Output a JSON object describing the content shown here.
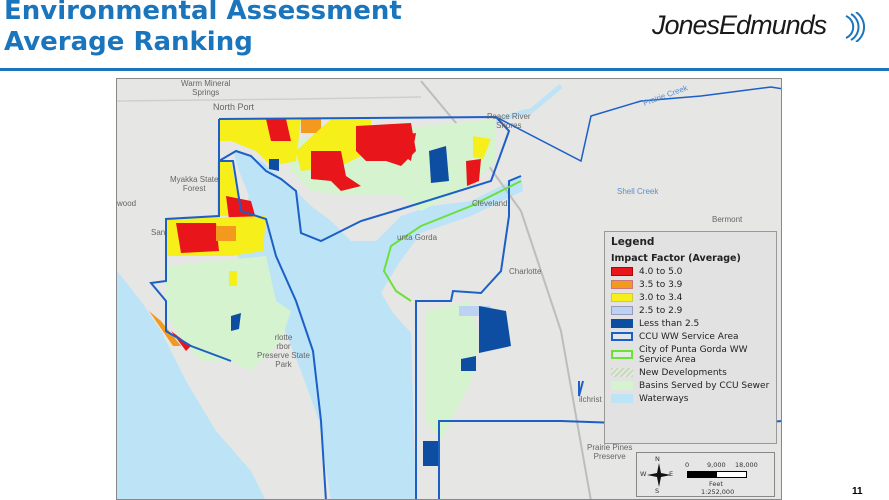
{
  "header": {
    "title_line1": "Environmental Assessment",
    "title_line2": "Average Ranking",
    "logo_text": "JonesEdmunds",
    "accent_color": "#1a75bc"
  },
  "map": {
    "place_labels": {
      "warm_mineral_springs": "Warm Mineral\nSprings",
      "north_port": "North Port",
      "peace_river_shores": "Peace River\nShores",
      "prairie_creek": "Prairie Creek",
      "shell_creek": "Shell Creek",
      "myakka": "Myakka State\nForest",
      "englewood": "wood",
      "cleveland": "Cleveland",
      "bermont": "Bermont",
      "punta_gorda": "unta Gorda",
      "charlotte": "Charlotte",
      "san": "San",
      "harbor_preserve": "rlotte\nrbor\nPreserve State\nPark",
      "prairie_pines": "Prairie Pines\nPreserve",
      "gilchrist": "ilchrist"
    },
    "legend": {
      "title": "Legend",
      "subtitle": "Impact Factor (Average)",
      "items": [
        {
          "label": "4.0 to 5.0",
          "color": "#e8151b"
        },
        {
          "label": "3.5 to 3.9",
          "color": "#f39a1e"
        },
        {
          "label": "3.0 to 3.4",
          "color": "#f7ef1a"
        },
        {
          "label": "2.5 to 2.9",
          "color": "#bcd2f2"
        },
        {
          "label": "Less than 2.5",
          "color": "#0d4ea3"
        },
        {
          "label": "CCU WW Service Area",
          "color": "#1b5fc7"
        },
        {
          "label": "City of Punta Gorda WW Service Area",
          "color": "#6ee03a"
        },
        {
          "label": "New Developments",
          "color": "#c9d6c0"
        },
        {
          "label": "Basins Served by CCU Sewer",
          "color": "#d6f3cf"
        },
        {
          "label": "Waterways",
          "color": "#bde3f7"
        }
      ]
    },
    "scale_bar": {
      "north": "N",
      "south": "S",
      "east": "E",
      "west": "W",
      "ticks": [
        "0",
        "9,000",
        "18,000"
      ],
      "units": "Feet",
      "ratio": "1:252,000"
    }
  },
  "page_number": "11"
}
